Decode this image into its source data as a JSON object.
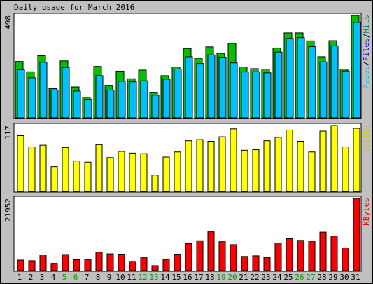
{
  "chart_data": [
    {
      "type": "bar",
      "title": "Daily usage for March 2016",
      "ymax_label": "498",
      "legend": [
        {
          "name": "Pages",
          "color": "#00805c"
        },
        {
          "name": "Files",
          "color": "#0000ff"
        },
        {
          "name": "Hits",
          "color": "#00805c"
        }
      ],
      "legend_separator": "/",
      "categories": [
        "1",
        "2",
        "3",
        "4",
        "5",
        "6",
        "7",
        "8",
        "9",
        "10",
        "11",
        "12",
        "13",
        "14",
        "15",
        "16",
        "17",
        "18",
        "19",
        "20",
        "21",
        "22",
        "23",
        "24",
        "25",
        "26",
        "27",
        "28",
        "29",
        "30",
        "31"
      ],
      "weekend_days": [
        "5",
        "6",
        "12",
        "13",
        "19",
        "20",
        "26",
        "27"
      ],
      "ylim": [
        0,
        498
      ],
      "series": [
        {
          "name": "Hits",
          "color": "#00c000",
          "values": [
            274,
            224,
            302,
            142,
            277,
            150,
            100,
            250,
            158,
            227,
            190,
            232,
            124,
            205,
            247,
            337,
            290,
            345,
            314,
            362,
            247,
            239,
            237,
            339,
            413,
            413,
            374,
            297,
            375,
            237,
            498
          ]
        },
        {
          "name": "Files",
          "color": "#00c0ff",
          "values": [
            234,
            195,
            270,
            135,
            245,
            130,
            90,
            205,
            135,
            178,
            175,
            180,
            110,
            188,
            237,
            297,
            264,
            306,
            295,
            267,
            223,
            224,
            219,
            320,
            386,
            390,
            346,
            272,
            350,
            228,
            464
          ]
        },
        {
          "name": "Pages",
          "color": "#0000ff",
          "values": [
            0,
            0,
            0,
            0,
            0,
            0,
            0,
            0,
            0,
            0,
            0,
            0,
            0,
            0,
            0,
            0,
            0,
            0,
            0,
            0,
            0,
            0,
            0,
            0,
            0,
            0,
            0,
            0,
            0,
            0,
            0
          ]
        }
      ]
    },
    {
      "type": "bar",
      "ymax_label": "117",
      "legend": [
        {
          "name": "Visits",
          "color": "#ffff00"
        }
      ],
      "ylim": [
        0,
        117
      ],
      "series": [
        {
          "name": "Visits",
          "color": "#ffff00",
          "values": [
            99,
            79,
            82,
            44,
            78,
            54,
            52,
            83,
            60,
            71,
            68,
            67,
            29,
            61,
            70,
            90,
            92,
            89,
            97,
            111,
            73,
            74,
            90,
            96,
            109,
            89,
            70,
            107,
            117,
            79,
            112
          ]
        }
      ]
    },
    {
      "type": "bar",
      "ymax_label": "21952",
      "legend": [
        {
          "name": "KBytes",
          "color": "#ff0000"
        }
      ],
      "ylim": [
        0,
        21952
      ],
      "series": [
        {
          "name": "KBytes",
          "color": "#ff0000",
          "values": [
            3200,
            3000,
            4800,
            2200,
            4900,
            3300,
            3400,
            5600,
            5100,
            5000,
            2800,
            3900,
            1500,
            3400,
            5000,
            8200,
            9100,
            11800,
            8800,
            7900,
            4300,
            4500,
            4000,
            8400,
            9700,
            9200,
            9000,
            11700,
            10500,
            6900,
            21952
          ]
        }
      ]
    }
  ]
}
